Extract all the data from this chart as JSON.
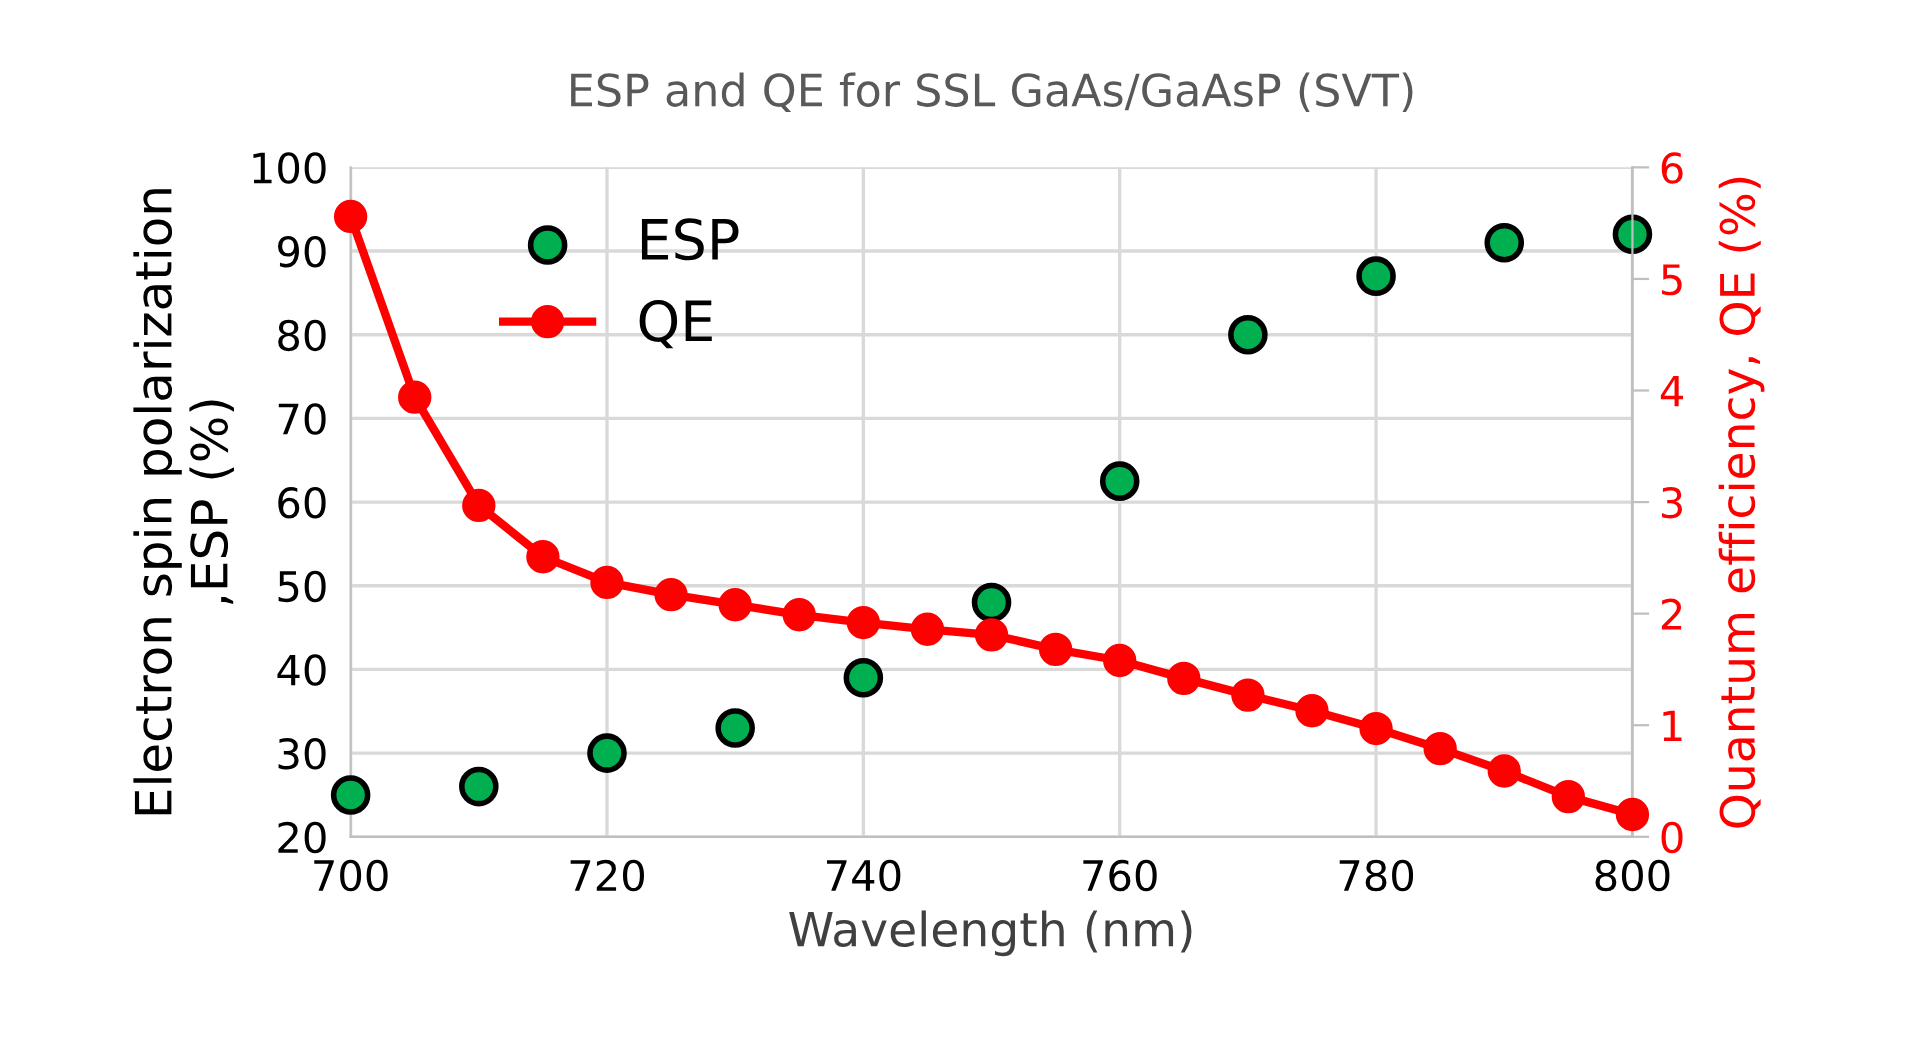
{
  "chart_data": {
    "type": "scatter",
    "title": "ESP and QE for SSL GaAs/GaAsP (SVT)",
    "xlabel": "Wavelength (nm)",
    "ylabel": "Electron spin polarization\n,ESP (%)",
    "y2label": "Quantum efficiency, QE (%)",
    "xlim": [
      700,
      800
    ],
    "xticks": [
      700,
      720,
      740,
      760,
      780,
      800
    ],
    "ylim": [
      20,
      100
    ],
    "yticks": [
      20,
      30,
      40,
      50,
      60,
      70,
      80,
      90,
      100
    ],
    "y2lim": [
      0,
      6
    ],
    "y2ticks": [
      0,
      1,
      2,
      3,
      4,
      5,
      6
    ],
    "grid": true,
    "legend": "top left",
    "marker": "circle",
    "series": [
      {
        "name": "ESP",
        "color": "#00b050",
        "x": [
          700,
          710,
          720,
          730,
          740,
          750,
          760,
          770,
          780,
          790,
          800
        ],
        "values": [
          25,
          26,
          30,
          33,
          39,
          48,
          62.5,
          80,
          87,
          91,
          92
        ]
      },
      {
        "name": "QE",
        "type": "line",
        "axis": "y2",
        "color": "#ff0000",
        "x": [
          700,
          705,
          710,
          715,
          720,
          725,
          730,
          735,
          740,
          745,
          750,
          755,
          760,
          765,
          770,
          775,
          780,
          785,
          790,
          795,
          800
        ],
        "values": [
          5.56,
          3.94,
          2.97,
          2.51,
          2.28,
          2.17,
          2.08,
          1.99,
          1.92,
          1.86,
          1.81,
          1.68,
          1.58,
          1.42,
          1.27,
          1.13,
          0.97,
          0.79,
          0.59,
          0.36,
          0.2
        ]
      }
    ]
  }
}
